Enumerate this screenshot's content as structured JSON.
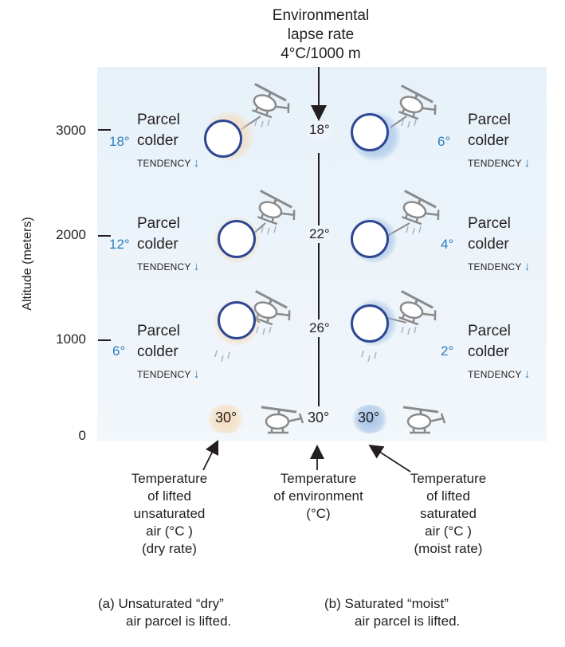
{
  "header": {
    "title_lines": [
      "Environmental",
      "lapse rate",
      "4°C/1000 m"
    ]
  },
  "axis": {
    "title": "Altitude (meters)",
    "ticks": [
      "3000",
      "2000",
      "1000",
      "0"
    ]
  },
  "parcel_text": {
    "line1": "Parcel",
    "line2": "colder",
    "tendency": "TENDENCY",
    "tendency_arrow": "↓"
  },
  "left_temps": [
    "18°",
    "12°",
    "6°"
  ],
  "right_temps": [
    "6°",
    "4°",
    "2°"
  ],
  "env_temps": [
    "18°",
    "22°",
    "26°"
  ],
  "bottom": {
    "dry": "30°",
    "env": "30°",
    "moist": "30°"
  },
  "captions": {
    "dry": [
      "Temperature",
      "of lifted",
      "unsaturated",
      "air (°C )",
      "(dry rate)"
    ],
    "env": [
      "Temperature",
      "of environment",
      "(°C)"
    ],
    "moist": [
      "Temperature",
      "of lifted",
      "saturated",
      "air (°C )",
      "(moist rate)"
    ]
  },
  "panel_captions": {
    "a": [
      "(a) Unsaturated “dry”",
      "air parcel is lifted."
    ],
    "b": [
      "(b)  Saturated “moist”",
      "air parcel is lifted."
    ]
  },
  "icons": {
    "balloon": "hot-air-balloon-icon",
    "helicopter": "helicopter-icon"
  },
  "colors": {
    "accent_blue": "#2a7fc1",
    "circle_stroke": "#2e4793",
    "panel_bg": "#e9f2f9",
    "warm_glow": "#f7d6b0",
    "cool_glow": "#96b8e2"
  }
}
